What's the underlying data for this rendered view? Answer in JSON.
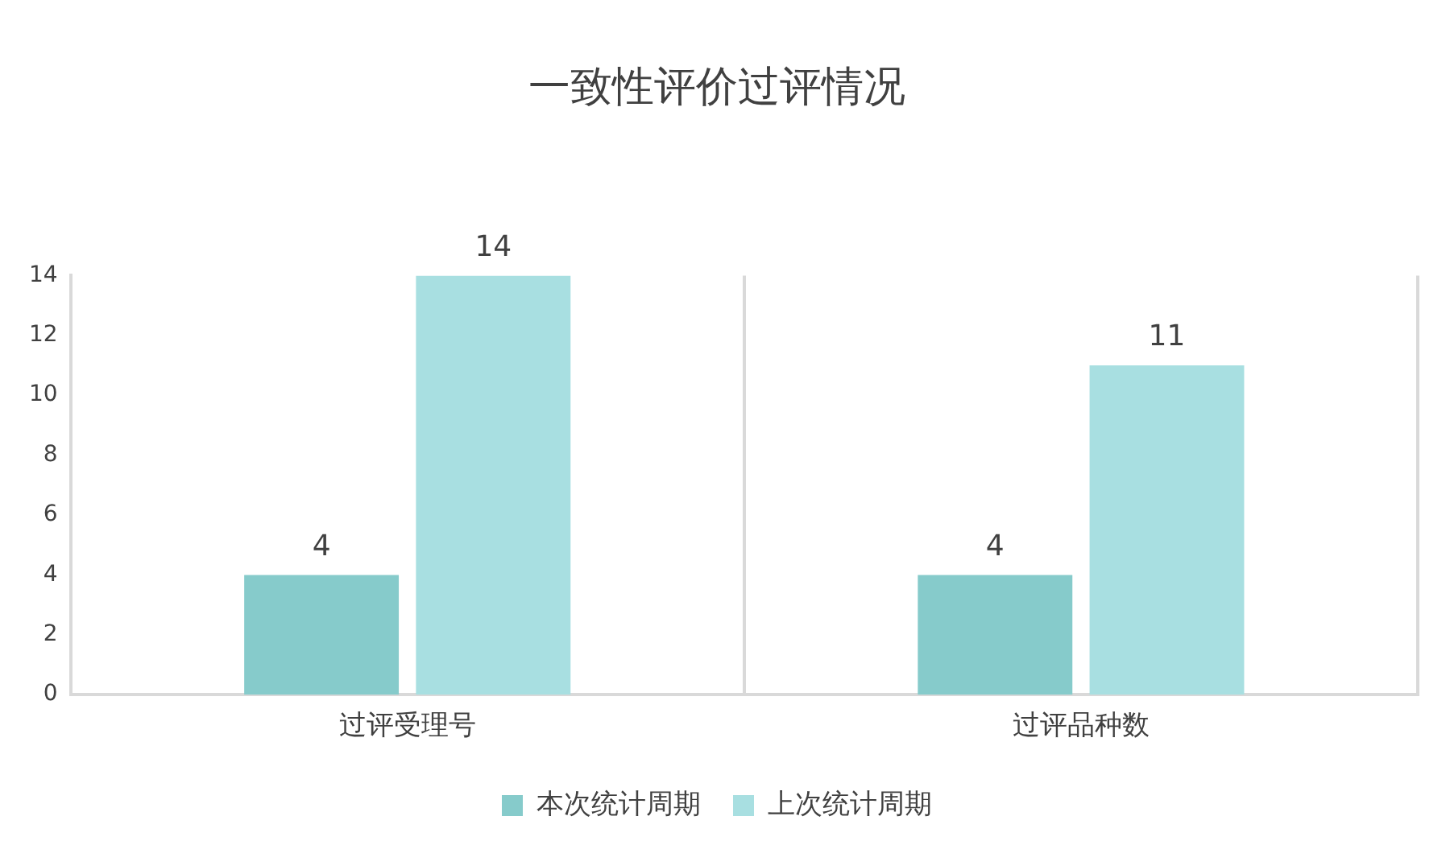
{
  "chart_data": {
    "type": "bar",
    "title": "一致性评价过评情况",
    "categories": [
      "过评受理号",
      "过评品种数"
    ],
    "series": [
      {
        "name": "本次统计周期",
        "color": "#86cbcb",
        "values": [
          4,
          4
        ]
      },
      {
        "name": "上次统计周期",
        "color": "#a8dfe1",
        "values": [
          14,
          11
        ]
      }
    ],
    "ylim": [
      0,
      14
    ],
    "yticks": [
      0,
      2,
      4,
      6,
      8,
      10,
      12,
      14
    ],
    "grid": "x",
    "legend": "bottom",
    "data_labels": true
  }
}
